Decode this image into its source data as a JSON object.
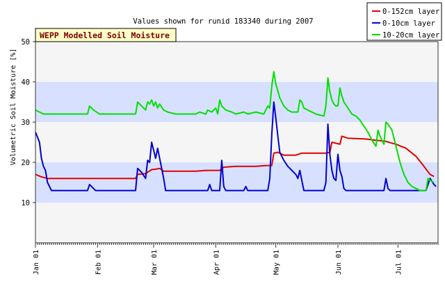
{
  "chart_data": {
    "type": "line",
    "title": "Values shown for runid 183340 during 2007",
    "badge": "WEPP Modelled Soil Moisture",
    "ylabel": "Volumetric Soil Moisture [%]",
    "xlabel": "",
    "ylim": [
      0,
      50
    ],
    "yticks": [
      10,
      20,
      30,
      40,
      50
    ],
    "xlim": [
      0,
      201
    ],
    "xticks": [
      {
        "label": "Jan 01",
        "day": 0
      },
      {
        "label": "Feb 01",
        "day": 31
      },
      {
        "label": "Mar 01",
        "day": 59
      },
      {
        "label": "Apr 01",
        "day": 90
      },
      {
        "label": "May 01",
        "day": 120
      },
      {
        "label": "Jun 01",
        "day": 151
      },
      {
        "label": "Jul 01",
        "day": 181
      }
    ],
    "bands": [
      [
        10,
        20
      ],
      [
        30,
        40
      ]
    ],
    "band_color": "#d7e1ff",
    "plot_bg": "#f5f5f5",
    "legend_position": "top-right",
    "series": [
      {
        "name": "0-152cm layer",
        "color": "#e00000",
        "points": [
          [
            0,
            17.0
          ],
          [
            3,
            16.4
          ],
          [
            6,
            16.0
          ],
          [
            10,
            16.0
          ],
          [
            20,
            16.0
          ],
          [
            30,
            16.0
          ],
          [
            40,
            16.0
          ],
          [
            50,
            16.0
          ],
          [
            51,
            17.0
          ],
          [
            55,
            17.2
          ],
          [
            58,
            18.2
          ],
          [
            60,
            18.3
          ],
          [
            62,
            18.5
          ],
          [
            64,
            17.8
          ],
          [
            70,
            17.8
          ],
          [
            80,
            17.8
          ],
          [
            85,
            18.0
          ],
          [
            92,
            18.0
          ],
          [
            94,
            18.8
          ],
          [
            100,
            19.0
          ],
          [
            110,
            19.0
          ],
          [
            115,
            19.2
          ],
          [
            118,
            19.2
          ],
          [
            119,
            22.3
          ],
          [
            121,
            22.5
          ],
          [
            124,
            21.8
          ],
          [
            130,
            21.8
          ],
          [
            133,
            22.3
          ],
          [
            140,
            22.3
          ],
          [
            145,
            22.3
          ],
          [
            147,
            22.5
          ],
          [
            148,
            25.0
          ],
          [
            152,
            24.5
          ],
          [
            153,
            26.5
          ],
          [
            156,
            26.0
          ],
          [
            165,
            25.8
          ],
          [
            170,
            25.5
          ],
          [
            175,
            25.2
          ],
          [
            180,
            24.5
          ],
          [
            185,
            23.5
          ],
          [
            190,
            21.5
          ],
          [
            194,
            19.0
          ],
          [
            197,
            17.0
          ],
          [
            199,
            16.5
          ]
        ]
      },
      {
        "name": "0-10cm layer",
        "color": "#0000d0",
        "points": [
          [
            0,
            27.5
          ],
          [
            2,
            25.0
          ],
          [
            3,
            21.0
          ],
          [
            4,
            19.0
          ],
          [
            5,
            18.0
          ],
          [
            6,
            15.0
          ],
          [
            7,
            14.0
          ],
          [
            8,
            13.0
          ],
          [
            10,
            13.0
          ],
          [
            20,
            13.0
          ],
          [
            26,
            13.0
          ],
          [
            27,
            14.5
          ],
          [
            29,
            13.5
          ],
          [
            30,
            13.0
          ],
          [
            40,
            13.0
          ],
          [
            50,
            13.0
          ],
          [
            51,
            18.5
          ],
          [
            53,
            17.5
          ],
          [
            55,
            16.0
          ],
          [
            56,
            20.5
          ],
          [
            57,
            20.0
          ],
          [
            58,
            25.0
          ],
          [
            59,
            23.0
          ],
          [
            60,
            21.0
          ],
          [
            61,
            23.5
          ],
          [
            62,
            21.0
          ],
          [
            64,
            16.0
          ],
          [
            65,
            13.0
          ],
          [
            70,
            13.0
          ],
          [
            80,
            13.0
          ],
          [
            86,
            13.0
          ],
          [
            87,
            14.5
          ],
          [
            88,
            13.0
          ],
          [
            92,
            13.0
          ],
          [
            93,
            20.5
          ],
          [
            94,
            14.0
          ],
          [
            95,
            13.0
          ],
          [
            100,
            13.0
          ],
          [
            104,
            13.0
          ],
          [
            105,
            14.0
          ],
          [
            106,
            13.0
          ],
          [
            112,
            13.0
          ],
          [
            116,
            13.0
          ],
          [
            117,
            16.0
          ],
          [
            118,
            27.0
          ],
          [
            119,
            35.0
          ],
          [
            120,
            31.0
          ],
          [
            121,
            26.5
          ],
          [
            122,
            22.5
          ],
          [
            124,
            20.5
          ],
          [
            126,
            19.0
          ],
          [
            128,
            18.0
          ],
          [
            130,
            17.0
          ],
          [
            131,
            16.0
          ],
          [
            132,
            18.0
          ],
          [
            133,
            15.5
          ],
          [
            134,
            13.0
          ],
          [
            140,
            13.0
          ],
          [
            144,
            13.0
          ],
          [
            145,
            15.0
          ],
          [
            146,
            29.5
          ],
          [
            147,
            22.0
          ],
          [
            148,
            18.0
          ],
          [
            149,
            16.0
          ],
          [
            150,
            15.5
          ],
          [
            151,
            22.0
          ],
          [
            152,
            18.0
          ],
          [
            153,
            16.5
          ],
          [
            154,
            13.5
          ],
          [
            155,
            13.0
          ],
          [
            160,
            13.0
          ],
          [
            170,
            13.0
          ],
          [
            174,
            13.0
          ],
          [
            175,
            16.0
          ],
          [
            176,
            13.5
          ],
          [
            177,
            13.0
          ],
          [
            185,
            13.0
          ],
          [
            190,
            13.0
          ],
          [
            195,
            13.0
          ],
          [
            197,
            16.0
          ],
          [
            199,
            14.5
          ],
          [
            200,
            14.0
          ]
        ]
      },
      {
        "name": "10-20cm layer",
        "color": "#00e000",
        "points": [
          [
            0,
            33.0
          ],
          [
            2,
            32.5
          ],
          [
            4,
            32.0
          ],
          [
            10,
            32.0
          ],
          [
            20,
            32.0
          ],
          [
            26,
            32.0
          ],
          [
            27,
            34.0
          ],
          [
            29,
            33.0
          ],
          [
            32,
            32.0
          ],
          [
            40,
            32.0
          ],
          [
            50,
            32.0
          ],
          [
            51,
            35.0
          ],
          [
            53,
            34.0
          ],
          [
            55,
            33.0
          ],
          [
            56,
            35.0
          ],
          [
            57,
            34.5
          ],
          [
            58,
            35.5
          ],
          [
            59,
            34.0
          ],
          [
            60,
            35.0
          ],
          [
            61,
            33.5
          ],
          [
            62,
            34.5
          ],
          [
            64,
            33.0
          ],
          [
            66,
            32.5
          ],
          [
            70,
            32.0
          ],
          [
            75,
            32.0
          ],
          [
            80,
            32.0
          ],
          [
            82,
            32.5
          ],
          [
            85,
            32.0
          ],
          [
            86,
            33.0
          ],
          [
            88,
            32.5
          ],
          [
            90,
            33.5
          ],
          [
            91,
            32.0
          ],
          [
            92,
            35.5
          ],
          [
            93,
            34.0
          ],
          [
            95,
            33.0
          ],
          [
            98,
            32.5
          ],
          [
            100,
            32.0
          ],
          [
            104,
            32.5
          ],
          [
            106,
            32.0
          ],
          [
            110,
            32.5
          ],
          [
            114,
            32.0
          ],
          [
            116,
            34.0
          ],
          [
            117,
            33.5
          ],
          [
            118,
            39.0
          ],
          [
            119,
            42.5
          ],
          [
            120,
            39.5
          ],
          [
            122,
            36.0
          ],
          [
            124,
            34.0
          ],
          [
            126,
            33.0
          ],
          [
            128,
            32.5
          ],
          [
            130,
            32.5
          ],
          [
            131,
            32.5
          ],
          [
            132,
            35.5
          ],
          [
            133,
            35.0
          ],
          [
            134,
            33.5
          ],
          [
            136,
            33.0
          ],
          [
            138,
            32.5
          ],
          [
            140,
            32.0
          ],
          [
            144,
            31.5
          ],
          [
            145,
            34.0
          ],
          [
            146,
            41.0
          ],
          [
            147,
            37.5
          ],
          [
            148,
            35.5
          ],
          [
            149,
            34.5
          ],
          [
            150,
            34.0
          ],
          [
            151,
            34.0
          ],
          [
            152,
            38.5
          ],
          [
            153,
            36.5
          ],
          [
            154,
            35.0
          ],
          [
            156,
            33.5
          ],
          [
            158,
            32.0
          ],
          [
            160,
            31.5
          ],
          [
            162,
            30.5
          ],
          [
            164,
            29.0
          ],
          [
            166,
            27.5
          ],
          [
            168,
            25.5
          ],
          [
            170,
            24.0
          ],
          [
            171,
            28.0
          ],
          [
            172,
            26.5
          ],
          [
            174,
            24.5
          ],
          [
            175,
            30.0
          ],
          [
            176,
            29.5
          ],
          [
            178,
            28.0
          ],
          [
            180,
            24.0
          ],
          [
            182,
            20.0
          ],
          [
            184,
            17.0
          ],
          [
            186,
            15.0
          ],
          [
            188,
            14.0
          ],
          [
            190,
            13.5
          ],
          [
            192,
            13.0
          ],
          [
            194,
            13.0
          ],
          [
            195,
            13.0
          ],
          [
            196,
            16.0
          ],
          [
            197,
            15.5
          ],
          [
            199,
            15.0
          ]
        ]
      }
    ]
  }
}
